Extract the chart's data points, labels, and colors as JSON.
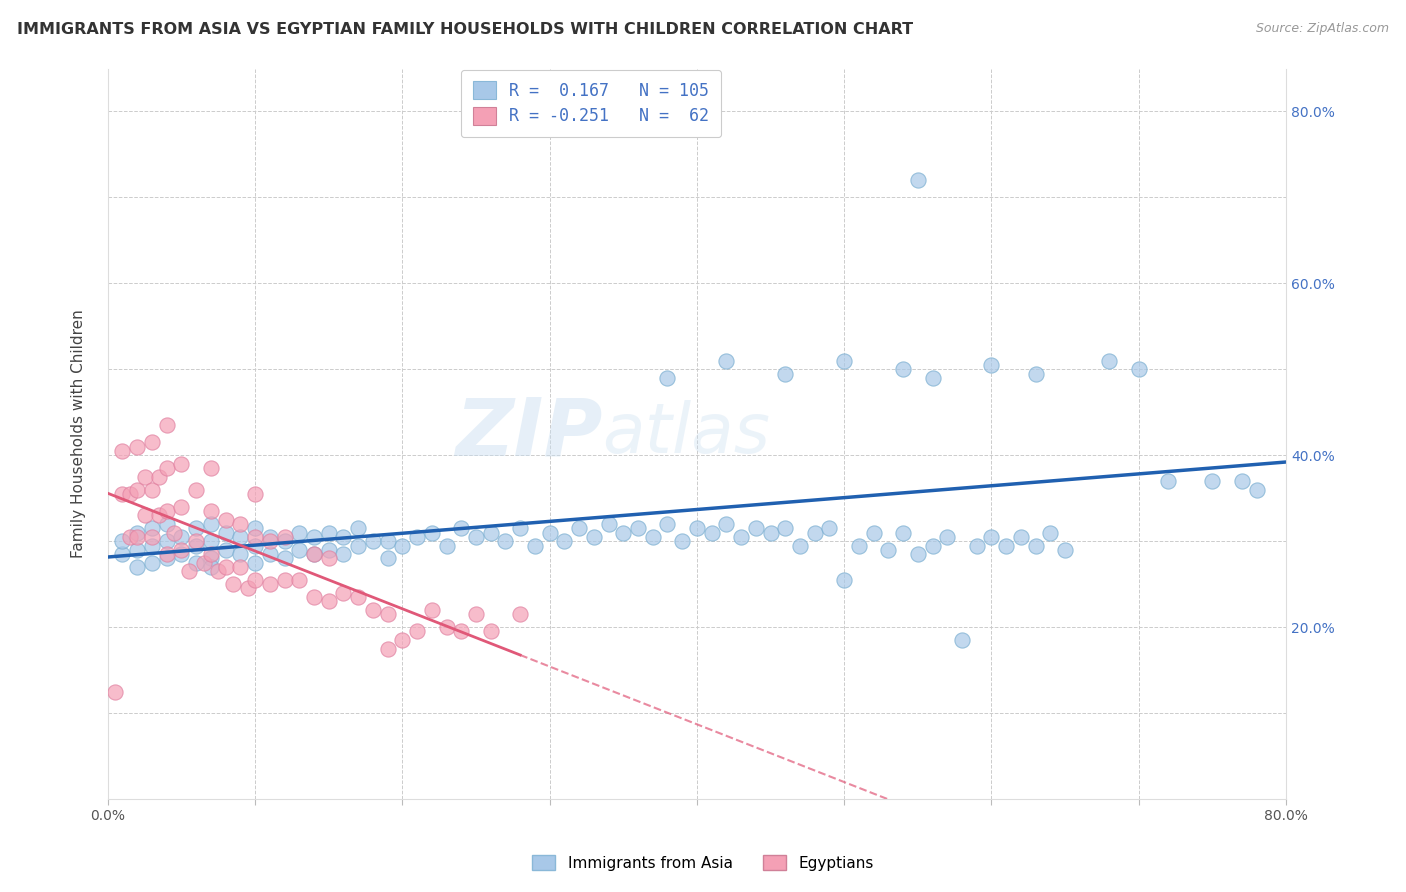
{
  "title": "IMMIGRANTS FROM ASIA VS EGYPTIAN FAMILY HOUSEHOLDS WITH CHILDREN CORRELATION CHART",
  "source": "Source: ZipAtlas.com",
  "ylabel": "Family Households with Children",
  "legend_label1": "Immigrants from Asia",
  "legend_label2": "Egyptians",
  "r1": 0.167,
  "n1": 105,
  "r2": -0.251,
  "n2": 62,
  "xlim": [
    0.0,
    0.8
  ],
  "ylim": [
    0.0,
    0.85
  ],
  "color_blue": "#a8c8e8",
  "color_pink": "#f4a0b5",
  "color_blue_line": "#2060b0",
  "color_pink_line": "#e05878",
  "watermark_zip": "ZIP",
  "watermark_atlas": "atlas",
  "blue_scatter_x": [
    0.01,
    0.01,
    0.02,
    0.02,
    0.02,
    0.03,
    0.03,
    0.03,
    0.04,
    0.04,
    0.04,
    0.05,
    0.05,
    0.06,
    0.06,
    0.06,
    0.07,
    0.07,
    0.07,
    0.07,
    0.08,
    0.08,
    0.09,
    0.09,
    0.1,
    0.1,
    0.1,
    0.11,
    0.11,
    0.12,
    0.12,
    0.13,
    0.13,
    0.14,
    0.14,
    0.15,
    0.15,
    0.16,
    0.16,
    0.17,
    0.17,
    0.18,
    0.19,
    0.19,
    0.2,
    0.21,
    0.22,
    0.23,
    0.24,
    0.25,
    0.26,
    0.27,
    0.28,
    0.29,
    0.3,
    0.31,
    0.32,
    0.33,
    0.34,
    0.35,
    0.36,
    0.37,
    0.38,
    0.39,
    0.4,
    0.41,
    0.42,
    0.43,
    0.44,
    0.45,
    0.46,
    0.47,
    0.48,
    0.49,
    0.5,
    0.51,
    0.52,
    0.53,
    0.54,
    0.55,
    0.56,
    0.57,
    0.58,
    0.59,
    0.6,
    0.61,
    0.62,
    0.63,
    0.64,
    0.65,
    0.38,
    0.42,
    0.46,
    0.5,
    0.54,
    0.55,
    0.56,
    0.6,
    0.63,
    0.68,
    0.7,
    0.72,
    0.75,
    0.77,
    0.78
  ],
  "blue_scatter_y": [
    0.285,
    0.3,
    0.27,
    0.29,
    0.31,
    0.275,
    0.295,
    0.315,
    0.28,
    0.3,
    0.32,
    0.285,
    0.305,
    0.275,
    0.295,
    0.315,
    0.28,
    0.3,
    0.32,
    0.27,
    0.29,
    0.31,
    0.285,
    0.305,
    0.275,
    0.295,
    0.315,
    0.285,
    0.305,
    0.28,
    0.3,
    0.29,
    0.31,
    0.285,
    0.305,
    0.29,
    0.31,
    0.285,
    0.305,
    0.295,
    0.315,
    0.3,
    0.28,
    0.3,
    0.295,
    0.305,
    0.31,
    0.295,
    0.315,
    0.305,
    0.31,
    0.3,
    0.315,
    0.295,
    0.31,
    0.3,
    0.315,
    0.305,
    0.32,
    0.31,
    0.315,
    0.305,
    0.32,
    0.3,
    0.315,
    0.31,
    0.32,
    0.305,
    0.315,
    0.31,
    0.315,
    0.295,
    0.31,
    0.315,
    0.255,
    0.295,
    0.31,
    0.29,
    0.31,
    0.285,
    0.295,
    0.305,
    0.185,
    0.295,
    0.305,
    0.295,
    0.305,
    0.295,
    0.31,
    0.29,
    0.49,
    0.51,
    0.495,
    0.51,
    0.5,
    0.72,
    0.49,
    0.505,
    0.495,
    0.51,
    0.5,
    0.37,
    0.37,
    0.37,
    0.36
  ],
  "pink_scatter_x": [
    0.005,
    0.01,
    0.01,
    0.015,
    0.015,
    0.02,
    0.02,
    0.02,
    0.025,
    0.025,
    0.03,
    0.03,
    0.03,
    0.035,
    0.035,
    0.04,
    0.04,
    0.04,
    0.04,
    0.045,
    0.05,
    0.05,
    0.05,
    0.055,
    0.06,
    0.06,
    0.065,
    0.07,
    0.07,
    0.07,
    0.075,
    0.08,
    0.08,
    0.085,
    0.09,
    0.09,
    0.095,
    0.1,
    0.1,
    0.1,
    0.11,
    0.11,
    0.12,
    0.12,
    0.13,
    0.14,
    0.14,
    0.15,
    0.15,
    0.16,
    0.17,
    0.18,
    0.19,
    0.19,
    0.2,
    0.21,
    0.22,
    0.23,
    0.24,
    0.25,
    0.26,
    0.28
  ],
  "pink_scatter_y": [
    0.125,
    0.355,
    0.405,
    0.305,
    0.355,
    0.305,
    0.36,
    0.41,
    0.33,
    0.375,
    0.305,
    0.36,
    0.415,
    0.33,
    0.375,
    0.285,
    0.335,
    0.385,
    0.435,
    0.31,
    0.29,
    0.34,
    0.39,
    0.265,
    0.3,
    0.36,
    0.275,
    0.285,
    0.335,
    0.385,
    0.265,
    0.27,
    0.325,
    0.25,
    0.27,
    0.32,
    0.245,
    0.255,
    0.305,
    0.355,
    0.25,
    0.3,
    0.255,
    0.305,
    0.255,
    0.235,
    0.285,
    0.23,
    0.28,
    0.24,
    0.235,
    0.22,
    0.175,
    0.215,
    0.185,
    0.195,
    0.22,
    0.2,
    0.195,
    0.215,
    0.195,
    0.215
  ]
}
